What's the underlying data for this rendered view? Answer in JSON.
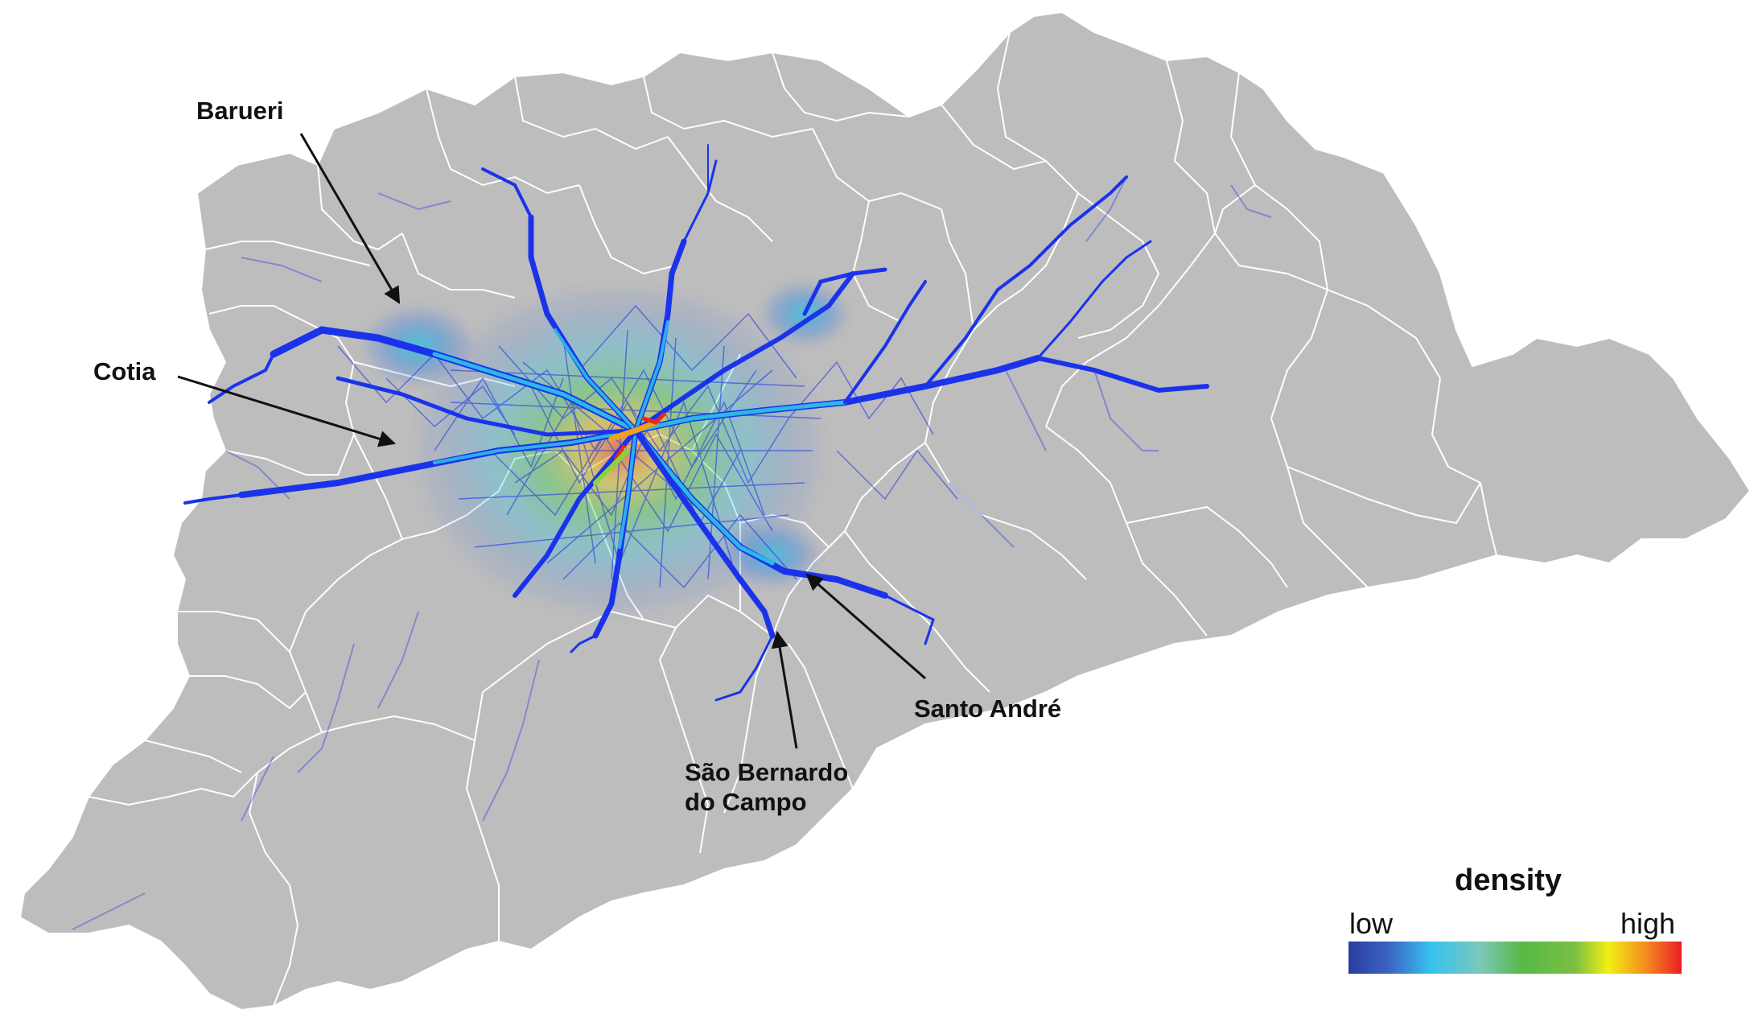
{
  "labels": {
    "barueri": "Barueri",
    "cotia": "Cotia",
    "santo_andre": "Santo André",
    "sao_bernardo_line1": "São Bernardo",
    "sao_bernardo_line2": "do Campo"
  },
  "legend": {
    "title": "density",
    "low": "low",
    "high": "high",
    "colors": [
      "#2a3d9e",
      "#37c3ee",
      "#58b947",
      "#f4ee14",
      "#ec1c24"
    ]
  },
  "colors": {
    "region_fill": "#bdbdbd",
    "boundary": "#ffffff",
    "flow_low": "#1530e8",
    "flow_mid": "#27c4e6",
    "flow_high": "#f02a16"
  }
}
